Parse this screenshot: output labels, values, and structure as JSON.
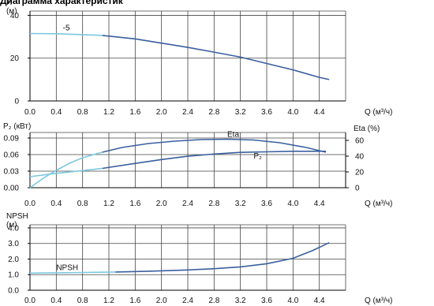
{
  "title": "Диаграмма характеристик",
  "colors": {
    "dark": "#3a5f9f",
    "light": "#7cc8de",
    "grid": "#333333"
  },
  "chart_data": [
    {
      "type": "line",
      "ylabel": [
        "H",
        "(м)"
      ],
      "xlabel": "Q (м³/ч)",
      "xlim": [
        0,
        4.8
      ],
      "ylim": [
        0,
        42
      ],
      "xticks": [
        "0.0",
        "0.4",
        "0.8",
        "1.2",
        "1.6",
        "2.0",
        "2.4",
        "2.8",
        "3.2",
        "3.6",
        "4.0",
        "4.4"
      ],
      "yticks": [
        "0",
        "20",
        "40"
      ],
      "series": [
        {
          "name": "-5",
          "segments": [
            {
              "color": "light",
              "points": [
                [
                  0,
                  31.5
                ],
                [
                  0.4,
                  31.4
                ],
                [
                  0.8,
                  31.0
                ],
                [
                  1.1,
                  30.6
                ]
              ]
            },
            {
              "color": "dark",
              "points": [
                [
                  1.1,
                  30.6
                ],
                [
                  1.6,
                  29.0
                ],
                [
                  2.0,
                  27.0
                ],
                [
                  2.4,
                  25.0
                ],
                [
                  2.8,
                  22.8
                ],
                [
                  3.2,
                  20.5
                ],
                [
                  3.6,
                  17.5
                ],
                [
                  4.0,
                  14.5
                ],
                [
                  4.4,
                  11.0
                ],
                [
                  4.55,
                  10.0
                ]
              ]
            }
          ]
        }
      ],
      "annotations": [
        {
          "text": "-5",
          "x": 0.5,
          "y": 33
        }
      ]
    },
    {
      "type": "line",
      "ylabel": "P₂ (кВт)",
      "ylabel_right": "Eta (%)",
      "xlabel": "Q (м³/ч)",
      "xlim": [
        0,
        4.8
      ],
      "ylim": [
        0,
        0.1
      ],
      "ylim_right": [
        0,
        70
      ],
      "xticks": [
        "0.0",
        "0.4",
        "0.8",
        "1.2",
        "1.6",
        "2.0",
        "2.4",
        "2.8",
        "3.2",
        "3.6",
        "4.0",
        "4.4"
      ],
      "yticks": [
        "0.00",
        "0.03",
        "0.06",
        "0.09"
      ],
      "yticks_right": [
        "0",
        "20",
        "40",
        "60"
      ],
      "series": [
        {
          "name": "Eta",
          "axis": "right",
          "segments": [
            {
              "color": "light",
              "points": [
                [
                  0,
                  0
                ],
                [
                  0.2,
                  12
                ],
                [
                  0.4,
                  22
                ],
                [
                  0.6,
                  31
                ],
                [
                  0.8,
                  38
                ],
                [
                  1.1,
                  45
                ]
              ]
            },
            {
              "color": "dark",
              "points": [
                [
                  1.1,
                  45
                ],
                [
                  1.4,
                  51
                ],
                [
                  1.8,
                  56
                ],
                [
                  2.2,
                  59
                ],
                [
                  2.6,
                  61
                ],
                [
                  3.0,
                  61.5
                ],
                [
                  3.4,
                  60.5
                ],
                [
                  3.8,
                  57
                ],
                [
                  4.2,
                  51
                ],
                [
                  4.5,
                  45
                ]
              ]
            }
          ]
        },
        {
          "name": "P₂",
          "axis": "left",
          "segments": [
            {
              "color": "light",
              "points": [
                [
                  0,
                  0.02
                ],
                [
                  0.4,
                  0.026
                ],
                [
                  0.8,
                  0.031
                ],
                [
                  1.1,
                  0.035
                ]
              ]
            },
            {
              "color": "dark",
              "points": [
                [
                  1.1,
                  0.035
                ],
                [
                  1.6,
                  0.044
                ],
                [
                  2.0,
                  0.051
                ],
                [
                  2.4,
                  0.057
                ],
                [
                  2.8,
                  0.061
                ],
                [
                  3.2,
                  0.064
                ],
                [
                  3.6,
                  0.065
                ],
                [
                  4.0,
                  0.066
                ],
                [
                  4.5,
                  0.066
                ]
              ]
            }
          ]
        }
      ],
      "annotations": [
        {
          "text": "Eta",
          "x": 3.0,
          "y": 0.092
        },
        {
          "text": "P₂",
          "x": 3.4,
          "y": 0.053
        }
      ]
    },
    {
      "type": "line",
      "ylabel": [
        "NPSH",
        "(м)"
      ],
      "xlabel": "Q (м³/ч)",
      "xlim": [
        0,
        4.8
      ],
      "ylim": [
        0,
        4.2
      ],
      "xticks": [
        "0.0",
        "0.4",
        "0.8",
        "1.2",
        "1.6",
        "2.0",
        "2.4",
        "2.8",
        "3.2",
        "3.6",
        "4.0",
        "4.4"
      ],
      "yticks": [
        "0.0",
        "1.0",
        "2.0",
        "3.0",
        "4.0"
      ],
      "series": [
        {
          "name": "NPSH",
          "segments": [
            {
              "color": "light",
              "points": [
                [
                  0,
                  1.1
                ],
                [
                  0.4,
                  1.12
                ],
                [
                  0.8,
                  1.14
                ],
                [
                  1.3,
                  1.17
                ]
              ]
            },
            {
              "color": "dark",
              "points": [
                [
                  1.3,
                  1.17
                ],
                [
                  1.8,
                  1.22
                ],
                [
                  2.4,
                  1.3
                ],
                [
                  2.8,
                  1.38
                ],
                [
                  3.2,
                  1.5
                ],
                [
                  3.6,
                  1.7
                ],
                [
                  4.0,
                  2.05
                ],
                [
                  4.3,
                  2.55
                ],
                [
                  4.55,
                  3.05
                ]
              ]
            }
          ]
        }
      ],
      "annotations": [
        {
          "text": "NPSH",
          "x": 0.4,
          "y": 1.3
        }
      ]
    }
  ]
}
